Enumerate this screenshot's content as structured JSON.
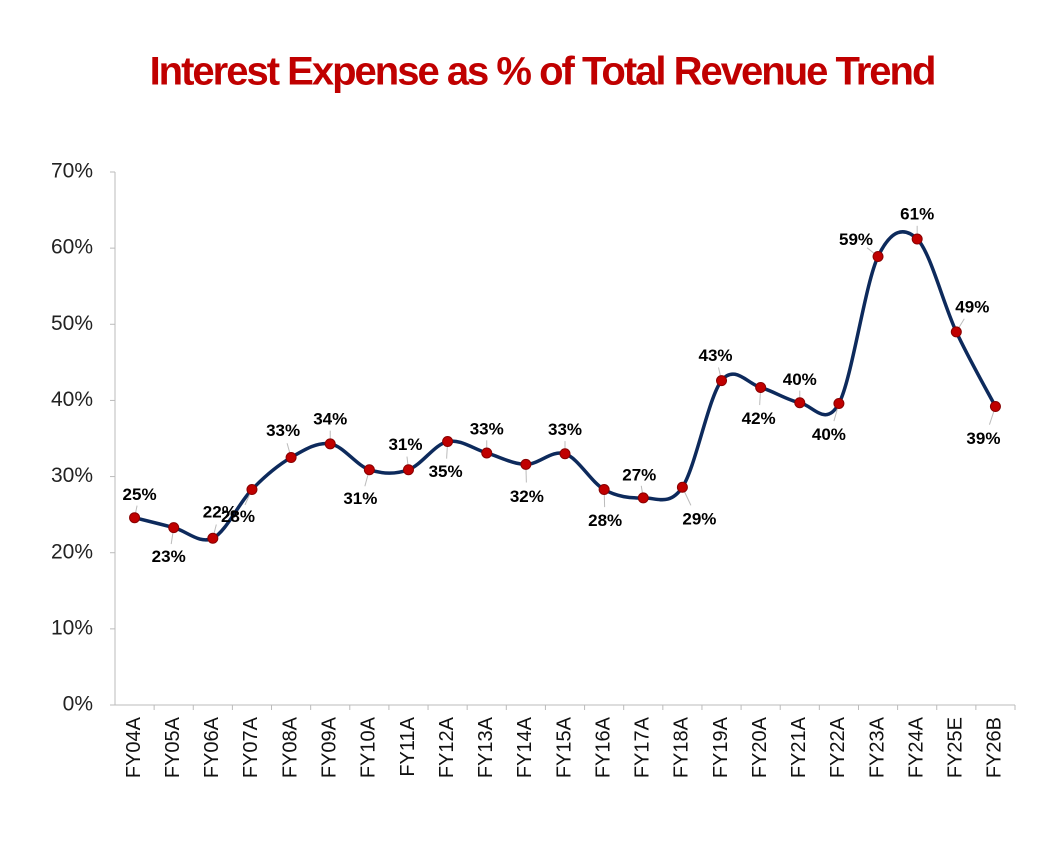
{
  "chart_data": {
    "type": "line",
    "title": "Interest Expense as % of Total Revenue Trend",
    "categories": [
      "FY04A",
      "FY05A",
      "FY06A",
      "FY07A",
      "FY08A",
      "FY09A",
      "FY10A",
      "FY11A",
      "FY12A",
      "FY13A",
      "FY14A",
      "FY15A",
      "FY16A",
      "FY17A",
      "FY18A",
      "FY19A",
      "FY20A",
      "FY21A",
      "FY22A",
      "FY23A",
      "FY24A",
      "FY25E",
      "FY26B"
    ],
    "series": [
      {
        "color": "#0d2a5c",
        "marker_color": "#c00000",
        "values": [
          24.6,
          23.3,
          21.9,
          28.3,
          32.5,
          34.3,
          30.9,
          30.9,
          34.6,
          33.1,
          31.6,
          33.0,
          28.3,
          27.2,
          28.6,
          42.6,
          41.7,
          39.7,
          39.6,
          58.9,
          61.2,
          49.0,
          39.2
        ],
        "value_labels": [
          "25%",
          "23%",
          "22%",
          "28%",
          "33%",
          "34%",
          "31%",
          "31%",
          "35%",
          "33%",
          "32%",
          "33%",
          "28%",
          "27%",
          "29%",
          "43%",
          "42%",
          "40%",
          "40%",
          "59%",
          "61%",
          "49%",
          "39%"
        ]
      }
    ],
    "ylim": [
      0,
      70
    ],
    "yticks": [
      {
        "value": 0,
        "label": "0%"
      },
      {
        "value": 10,
        "label": "10%"
      },
      {
        "value": 20,
        "label": "20%"
      },
      {
        "value": 30,
        "label": "30%"
      },
      {
        "value": 40,
        "label": "40%"
      },
      {
        "value": 50,
        "label": "50%"
      },
      {
        "value": 60,
        "label": "60%"
      },
      {
        "value": 70,
        "label": "70%"
      }
    ],
    "grid": false
  }
}
